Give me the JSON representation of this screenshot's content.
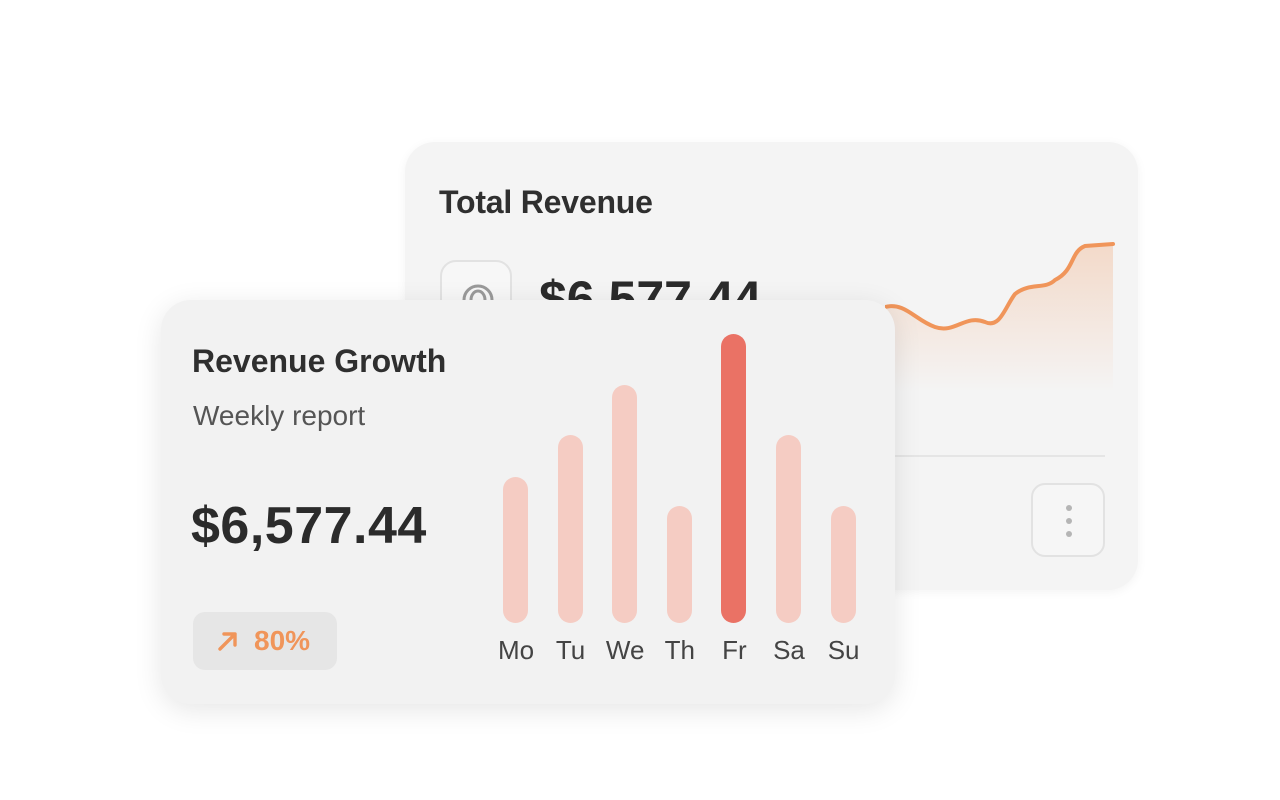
{
  "total_revenue_card": {
    "title": "Total Revenue",
    "amount": "$6,577.44",
    "icon": "coin-icon",
    "more_icon": "more-vertical-icon",
    "trend_color": "#F0955A"
  },
  "revenue_growth_card": {
    "title": "Revenue Growth",
    "subtitle": "Weekly report",
    "amount": "$6,577.44",
    "growth": {
      "value": "80%",
      "icon": "arrow-up-right-icon",
      "color": "#F0955A"
    }
  },
  "colors": {
    "bar_default": "#F5CCC3",
    "bar_highlight": "#EA7265"
  },
  "chart_data": {
    "type": "bar",
    "categories": [
      "Mo",
      "Tu",
      "We",
      "Th",
      "Fr",
      "Sa",
      "Su"
    ],
    "values": [
      146,
      188,
      238,
      117,
      289,
      188,
      117
    ],
    "highlight_index": 4,
    "title": "",
    "xlabel": "",
    "ylabel": ""
  }
}
